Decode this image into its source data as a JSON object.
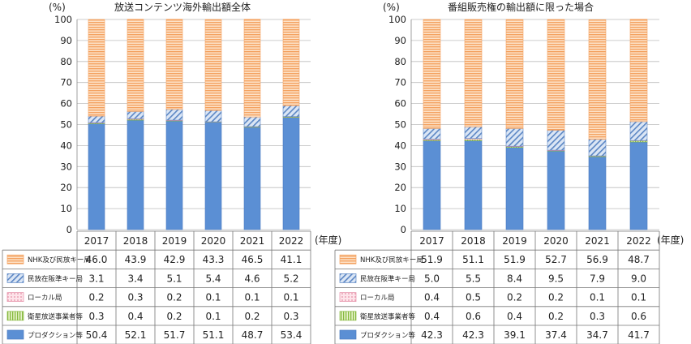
{
  "chart_data": [
    {
      "type": "bar",
      "stacked": true,
      "title": "放送コンテンツ海外輸出額全体",
      "unit_label": "(%)",
      "x_unit_label": "(年度)",
      "ylim": [
        0,
        100
      ],
      "y_ticks": [
        "0",
        "10",
        "20",
        "30",
        "40",
        "50",
        "60",
        "70",
        "80",
        "90",
        "100"
      ],
      "grid": true,
      "categories": [
        "2017",
        "2018",
        "2019",
        "2020",
        "2021",
        "2022"
      ],
      "series": [
        {
          "name": "NHK及び民放キー局",
          "values": [
            46.0,
            43.9,
            42.9,
            43.3,
            46.5,
            41.1
          ],
          "labels": [
            "46.0",
            "43.9",
            "42.9",
            "43.3",
            "46.5",
            "41.1"
          ]
        },
        {
          "name": "民放在阪準キー局",
          "values": [
            3.1,
            3.4,
            5.1,
            5.4,
            4.6,
            5.2
          ],
          "labels": [
            "3.1",
            "3.4",
            "5.1",
            "5.4",
            "4.6",
            "5.2"
          ]
        },
        {
          "name": "ローカル局",
          "values": [
            0.2,
            0.3,
            0.2,
            0.1,
            0.1,
            0.1
          ],
          "labels": [
            "0.2",
            "0.3",
            "0.2",
            "0.1",
            "0.1",
            "0.1"
          ]
        },
        {
          "name": "衛星放送事業者等",
          "values": [
            0.3,
            0.4,
            0.2,
            0.1,
            0.2,
            0.3
          ],
          "labels": [
            "0.3",
            "0.4",
            "0.2",
            "0.1",
            "0.2",
            "0.3"
          ]
        },
        {
          "name": "プロダクション等",
          "values": [
            50.4,
            52.1,
            51.7,
            51.1,
            48.7,
            53.4
          ],
          "labels": [
            "50.4",
            "52.1",
            "51.7",
            "51.1",
            "48.7",
            "53.4"
          ]
        }
      ]
    },
    {
      "type": "bar",
      "stacked": true,
      "title": "番組販売権の輸出額に限った場合",
      "unit_label": "(%)",
      "x_unit_label": "(年度)",
      "ylim": [
        0,
        100
      ],
      "y_ticks": [
        "0",
        "10",
        "20",
        "30",
        "40",
        "50",
        "60",
        "70",
        "80",
        "90",
        "100"
      ],
      "grid": true,
      "categories": [
        "2017",
        "2018",
        "2019",
        "2020",
        "2021",
        "2022"
      ],
      "series": [
        {
          "name": "NHK及び民放キー局",
          "values": [
            51.9,
            51.1,
            51.9,
            52.7,
            56.9,
            48.7
          ],
          "labels": [
            "51.9",
            "51.1",
            "51.9",
            "52.7",
            "56.9",
            "48.7"
          ]
        },
        {
          "name": "民放在阪準キー局",
          "values": [
            5.0,
            5.5,
            8.4,
            9.5,
            7.9,
            9.0
          ],
          "labels": [
            "5.0",
            "5.5",
            "8.4",
            "9.5",
            "7.9",
            "9.0"
          ]
        },
        {
          "name": "ローカル局",
          "values": [
            0.4,
            0.5,
            0.2,
            0.2,
            0.1,
            0.1
          ],
          "labels": [
            "0.4",
            "0.5",
            "0.2",
            "0.2",
            "0.1",
            "0.1"
          ]
        },
        {
          "name": "衛星放送事業者等",
          "values": [
            0.4,
            0.6,
            0.4,
            0.2,
            0.3,
            0.6
          ],
          "labels": [
            "0.4",
            "0.6",
            "0.4",
            "0.2",
            "0.3",
            "0.6"
          ]
        },
        {
          "name": "プロダクション等",
          "values": [
            42.3,
            42.3,
            39.1,
            37.4,
            34.7,
            41.7
          ],
          "labels": [
            "42.3",
            "42.3",
            "39.1",
            "37.4",
            "34.7",
            "41.7"
          ]
        }
      ]
    }
  ]
}
